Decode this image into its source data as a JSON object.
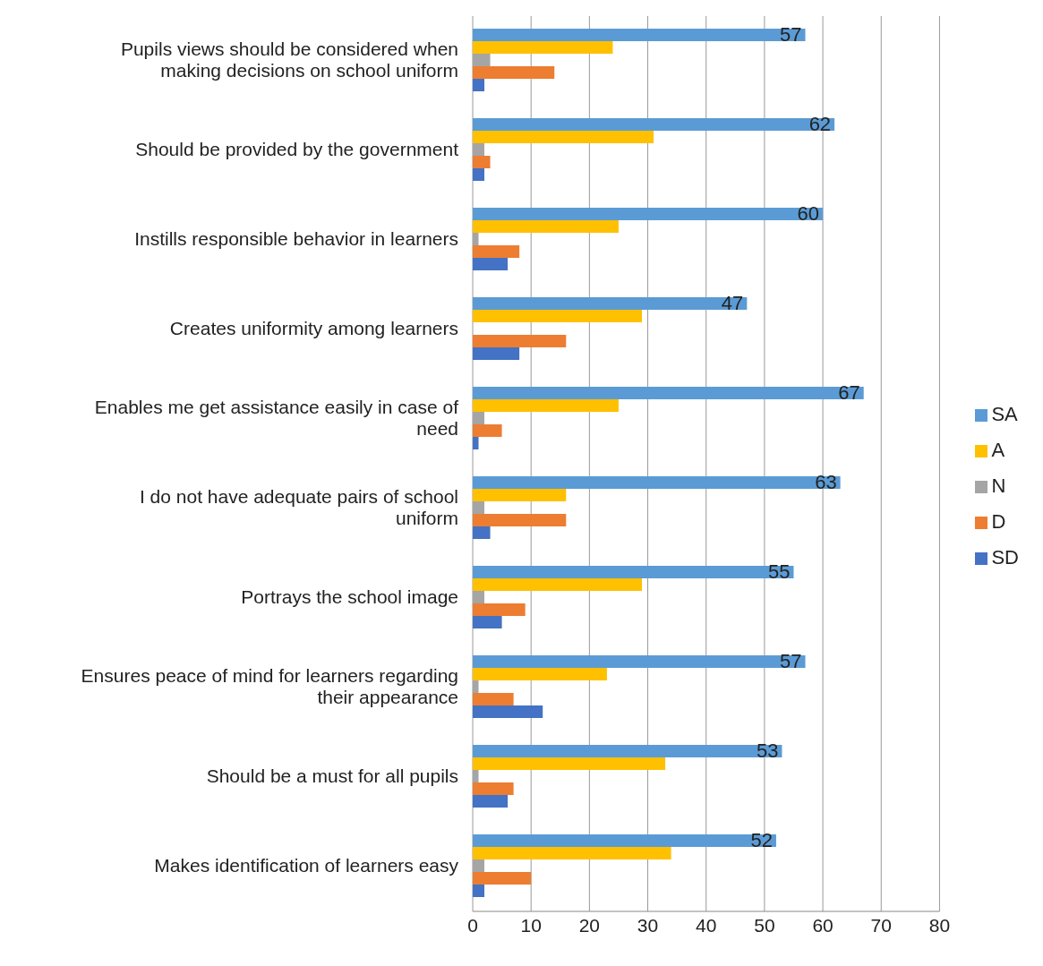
{
  "chart_data": {
    "type": "bar",
    "orientation": "horizontal",
    "categories": [
      "Pupils views should be considered when making decisions on school uniform",
      "Should be provided by the government",
      "Instills responsible behavior in learners",
      "Creates uniformity among learners",
      "Enables me get assistance easily in case of need",
      "I do not have adequate pairs of school uniform",
      "Portrays the school image",
      "Ensures peace of mind for learners regarding their appearance",
      "Should be a must for all pupils",
      "Makes identification of learners easy"
    ],
    "series": [
      {
        "name": "SA",
        "color": "#5b9bd5",
        "values": [
          57,
          62,
          60,
          47,
          67,
          63,
          55,
          57,
          53,
          52
        ],
        "value_labels": [
          "57",
          "62",
          "60",
          "47",
          "67",
          "63",
          "55",
          "57",
          "53",
          "52"
        ]
      },
      {
        "name": "A",
        "color": "#ffc000",
        "values": [
          24,
          31,
          25,
          29,
          25,
          16,
          29,
          23,
          33,
          34
        ]
      },
      {
        "name": "N",
        "color": "#a5a5a5",
        "values": [
          3,
          2,
          1,
          0,
          2,
          2,
          2,
          1,
          1,
          2
        ]
      },
      {
        "name": "D",
        "color": "#ed7d31",
        "values": [
          14,
          3,
          8,
          16,
          5,
          16,
          9,
          7,
          7,
          10
        ]
      },
      {
        "name": "SD",
        "color": "#4472c4",
        "values": [
          2,
          2,
          6,
          8,
          1,
          3,
          5,
          12,
          6,
          2
        ]
      }
    ],
    "xlim": [
      0,
      80
    ],
    "xticks": [
      0,
      10,
      20,
      30,
      40,
      50,
      60,
      70,
      80
    ],
    "grid": "x",
    "legend": "right"
  }
}
